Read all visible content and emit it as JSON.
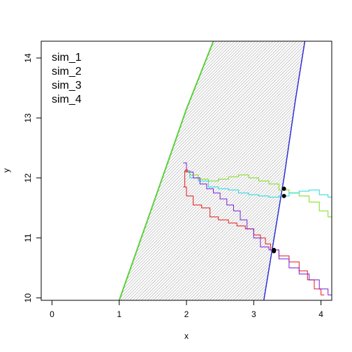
{
  "chart_data": {
    "type": "line",
    "xlabel": "x",
    "ylabel": "y",
    "xlim": [
      -0.16,
      4.16
    ],
    "ylim": [
      9.96,
      14.28
    ],
    "x_ticks": [
      0,
      1,
      2,
      3,
      4
    ],
    "y_ticks": [
      10,
      11,
      12,
      13,
      14
    ],
    "x_tick_labels": [
      "0",
      "1",
      "2",
      "3",
      "4"
    ],
    "y_tick_labels": [
      "10",
      "11",
      "12",
      "13",
      "14"
    ],
    "legend": {
      "position": "top-left",
      "entries": [
        "sim_1",
        "sim_2",
        "sim_3",
        "sim_4"
      ]
    },
    "region": {
      "fill": "hatched grey",
      "left_boundary": {
        "color": "#5ad13b",
        "points": [
          [
            1.0,
            9.96
          ],
          [
            1.5,
            11.55
          ],
          [
            2.0,
            13.15
          ],
          [
            2.4,
            14.28
          ]
        ]
      },
      "right_boundary": {
        "color": "#2e2ed6",
        "points": [
          [
            3.15,
            9.96
          ],
          [
            3.45,
            12.0
          ],
          [
            3.62,
            13.3
          ],
          [
            3.76,
            14.28
          ]
        ]
      }
    },
    "series": [
      {
        "name": "sim_1",
        "color": "#e31a1c",
        "points": [
          [
            2.0,
            12.12
          ],
          [
            1.95,
            11.85
          ],
          [
            2.05,
            11.7
          ],
          [
            2.15,
            11.55
          ],
          [
            2.3,
            11.5
          ],
          [
            2.4,
            11.35
          ],
          [
            2.55,
            11.3
          ],
          [
            2.7,
            11.25
          ],
          [
            2.8,
            11.2
          ],
          [
            2.95,
            11.15
          ],
          [
            3.05,
            11.05
          ],
          [
            3.15,
            11.0
          ],
          [
            3.2,
            10.9
          ],
          [
            3.3,
            10.8
          ],
          [
            3.45,
            10.7
          ],
          [
            3.6,
            10.6
          ],
          [
            3.75,
            10.45
          ],
          [
            3.85,
            10.3
          ],
          [
            3.95,
            10.15
          ],
          [
            4.05,
            10.05
          ]
        ],
        "endpoint": [
          3.3,
          10.78
        ]
      },
      {
        "name": "sim_2",
        "color": "#7fdc1a",
        "points": [
          [
            2.0,
            12.12
          ],
          [
            2.1,
            12.05
          ],
          [
            2.25,
            11.98
          ],
          [
            2.4,
            11.95
          ],
          [
            2.55,
            11.98
          ],
          [
            2.7,
            12.02
          ],
          [
            2.85,
            12.05
          ],
          [
            3.0,
            12.0
          ],
          [
            3.15,
            11.95
          ],
          [
            3.3,
            11.9
          ],
          [
            3.45,
            11.8
          ],
          [
            3.6,
            11.75
          ],
          [
            3.75,
            11.7
          ],
          [
            3.9,
            11.6
          ],
          [
            4.05,
            11.45
          ],
          [
            4.16,
            11.35
          ]
        ],
        "endpoint": [
          3.45,
          11.82
        ]
      },
      {
        "name": "sim_3",
        "color": "#1ed8e0",
        "points": [
          [
            2.0,
            12.12
          ],
          [
            2.1,
            12.0
          ],
          [
            2.25,
            11.95
          ],
          [
            2.4,
            11.85
          ],
          [
            2.55,
            11.82
          ],
          [
            2.7,
            11.8
          ],
          [
            2.85,
            11.75
          ],
          [
            3.0,
            11.72
          ],
          [
            3.15,
            11.7
          ],
          [
            3.3,
            11.68
          ],
          [
            3.45,
            11.7
          ],
          [
            3.6,
            11.75
          ],
          [
            3.75,
            11.78
          ],
          [
            3.9,
            11.8
          ],
          [
            4.05,
            11.72
          ],
          [
            4.16,
            11.68
          ]
        ],
        "endpoint": [
          3.45,
          11.7
        ]
      },
      {
        "name": "sim_4",
        "color": "#7b1fd6",
        "points": [
          [
            1.95,
            12.25
          ],
          [
            2.05,
            12.1
          ],
          [
            2.15,
            12.0
          ],
          [
            2.25,
            11.9
          ],
          [
            2.35,
            11.82
          ],
          [
            2.45,
            11.75
          ],
          [
            2.55,
            11.65
          ],
          [
            2.65,
            11.55
          ],
          [
            2.75,
            11.45
          ],
          [
            2.85,
            11.3
          ],
          [
            2.95,
            11.15
          ],
          [
            3.05,
            11.0
          ],
          [
            3.15,
            10.85
          ],
          [
            3.3,
            10.8
          ],
          [
            3.45,
            10.65
          ],
          [
            3.6,
            10.5
          ],
          [
            3.75,
            10.4
          ],
          [
            3.9,
            10.3
          ],
          [
            4.05,
            10.15
          ],
          [
            4.16,
            10.05
          ]
        ],
        "endpoint": [
          3.3,
          10.8
        ]
      }
    ]
  }
}
